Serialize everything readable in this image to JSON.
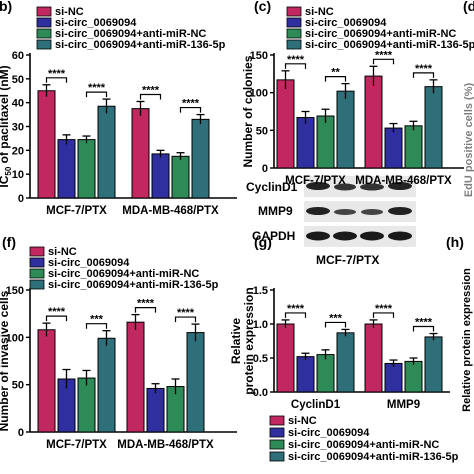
{
  "colors": {
    "si-NC": "#c0285f",
    "si-circ_0069094": "#2f2fa0",
    "si-circ_0069094+anti-miR-NC": "#2e8b57",
    "si-circ_0069094+anti-miR-136-5p": "#2e6f7a"
  },
  "panels": [
    {
      "key": "b",
      "label": "b)"
    },
    {
      "key": "c",
      "label": "(c)"
    },
    {
      "key": "d",
      "label": "(d"
    },
    {
      "key": "f",
      "label": "(f)"
    },
    {
      "key": "g",
      "label": "(g)"
    },
    {
      "key": "h",
      "label": "(h)"
    }
  ],
  "blot": {
    "rows": [
      "CyclinD1",
      "MMP9",
      "GAPDH"
    ],
    "caption": "MCF-7/PTX"
  },
  "cut_text": {
    "d_ylabel": "EdU positive cells (%)",
    "h_ylabel": "Relative protein expression"
  },
  "chart_data": [
    {
      "id": "b",
      "type": "bar",
      "categories": [
        "MCF-7/PTX",
        "MDA-MB-468/PTX"
      ],
      "ylabel_main": "IC",
      "ylabel_sub": "50",
      "ylabel_rest": " of paclitaxel (nM)",
      "ylim": [
        0,
        60
      ],
      "yticks": [
        "0",
        "10",
        "20",
        "30",
        "40",
        "50",
        "60"
      ],
      "legend": [
        "si-NC",
        "si-circ_0069094",
        "si-circ_0069094+anti-miR-NC",
        "si-circ_0069094+anti-miR-136-5p"
      ],
      "series": [
        {
          "name": "si-NC",
          "values": [
            45,
            37.5
          ],
          "errors": [
            2.5,
            3
          ]
        },
        {
          "name": "si-circ_0069094",
          "values": [
            24.5,
            18.5
          ],
          "errors": [
            2,
            1.5
          ]
        },
        {
          "name": "si-circ_0069094+anti-miR-NC",
          "values": [
            24.5,
            17.5
          ],
          "errors": [
            1.5,
            1.5
          ]
        },
        {
          "name": "si-circ_0069094+anti-miR-136-5p",
          "values": [
            38.5,
            33
          ],
          "errors": [
            3,
            2
          ]
        }
      ],
      "significance": [
        "****",
        "****",
        "****",
        "****"
      ]
    },
    {
      "id": "c",
      "type": "bar",
      "categories": [
        "MCF-7/PTX",
        "MDA-MB-468/PTX"
      ],
      "ylabel": "Number of colonies",
      "ylim": [
        0,
        150
      ],
      "yticks": [
        "0",
        "50",
        "100",
        "150"
      ],
      "legend": [
        "si-NC",
        "si-circ_0069094",
        "si-circ_0069094+anti-miR-NC",
        "si-circ_0069094+anti-miR-136-5p"
      ],
      "series": [
        {
          "name": "si-NC",
          "values": [
            117,
            122
          ],
          "errors": [
            12,
            13
          ]
        },
        {
          "name": "si-circ_0069094",
          "values": [
            67,
            53
          ],
          "errors": [
            8,
            6
          ]
        },
        {
          "name": "si-circ_0069094+anti-miR-NC",
          "values": [
            69,
            56
          ],
          "errors": [
            9,
            6
          ]
        },
        {
          "name": "si-circ_0069094+anti-miR-136-5p",
          "values": [
            102,
            108
          ],
          "errors": [
            10,
            9
          ]
        }
      ],
      "significance": [
        "****",
        "**",
        "****",
        "****"
      ]
    },
    {
      "id": "f",
      "type": "bar",
      "categories": [
        "MCF-7/PTX",
        "MDA-MB-468/PTX"
      ],
      "ylabel": "Number of invasive cells",
      "ylim": [
        0,
        150
      ],
      "yticks": [
        "0",
        "50",
        "100",
        "150"
      ],
      "legend": [
        "si-NC",
        "si-circ_0069094",
        "si-circ_0069094+anti-miR-NC",
        "si-circ_0069094+anti-miR-136-5p"
      ],
      "series": [
        {
          "name": "si-NC",
          "values": [
            108,
            116
          ],
          "errors": [
            7,
            8
          ]
        },
        {
          "name": "si-circ_0069094",
          "values": [
            56,
            46
          ],
          "errors": [
            10,
            5
          ]
        },
        {
          "name": "si-circ_0069094+anti-miR-NC",
          "values": [
            57,
            48
          ],
          "errors": [
            8,
            8
          ]
        },
        {
          "name": "si-circ_0069094+anti-miR-136-5p",
          "values": [
            99,
            105
          ],
          "errors": [
            8,
            9
          ]
        }
      ],
      "significance": [
        "****",
        "***",
        "****",
        "****"
      ]
    },
    {
      "id": "g",
      "type": "bar",
      "categories": [
        "CyclinD1",
        "MMP9"
      ],
      "ylabel_lines": [
        "Relative",
        "protein expression"
      ],
      "ylim": [
        0,
        1.5
      ],
      "yticks": [
        "0.0",
        "0.5",
        "1.0",
        "1.5"
      ],
      "legend": [
        "si-NC",
        "si-circ_0069094",
        "si-circ_0069094+anti-miR-NC",
        "si-circ_0069094+anti-miR-136-5p"
      ],
      "series": [
        {
          "name": "si-NC",
          "values": [
            1.0,
            1.0
          ],
          "errors": [
            0.06,
            0.06
          ]
        },
        {
          "name": "si-circ_0069094",
          "values": [
            0.52,
            0.42
          ],
          "errors": [
            0.05,
            0.05
          ]
        },
        {
          "name": "si-circ_0069094+anti-miR-NC",
          "values": [
            0.55,
            0.45
          ],
          "errors": [
            0.07,
            0.05
          ]
        },
        {
          "name": "si-circ_0069094+anti-miR-136-5p",
          "values": [
            0.87,
            0.81
          ],
          "errors": [
            0.05,
            0.05
          ]
        }
      ],
      "significance": [
        "****",
        "***",
        "****",
        "****"
      ]
    }
  ]
}
